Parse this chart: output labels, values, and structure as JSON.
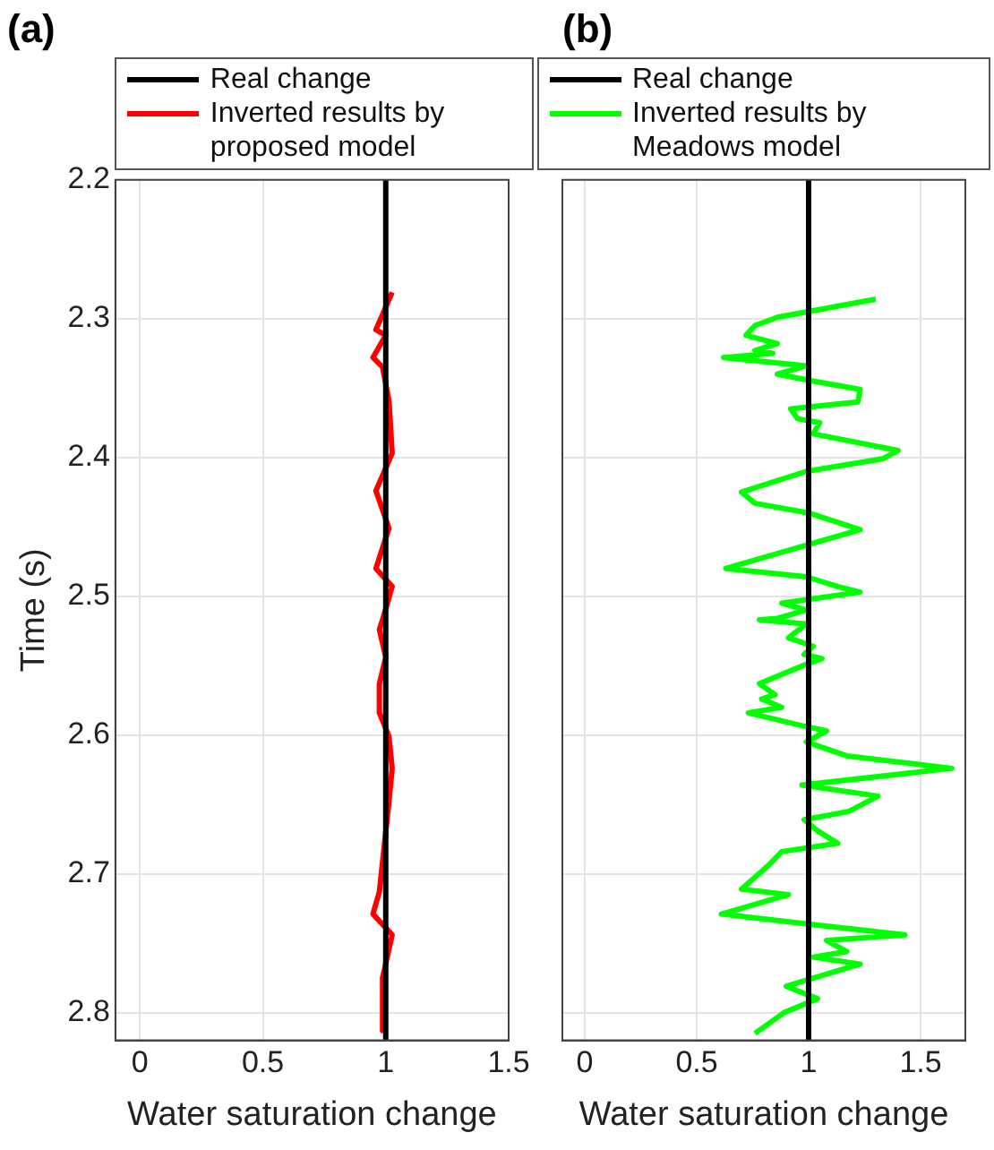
{
  "chart_data": [
    {
      "type": "line",
      "title": "(a)",
      "xlabel": "Water saturation change",
      "ylabel": "Time (s)",
      "xlim": [
        -0.1,
        1.5
      ],
      "xticks": [
        0,
        0.5,
        1,
        1.5
      ],
      "ylim": [
        2.82,
        2.2
      ],
      "yticks": [
        2.2,
        2.3,
        2.4,
        2.5,
        2.6,
        2.7,
        2.8
      ],
      "grid": true,
      "legend": "top",
      "marker": "none",
      "series": [
        {
          "name": "Real change",
          "color": "#000000",
          "x": [
            1,
            1
          ],
          "values": [
            2.2,
            2.82
          ]
        },
        {
          "name": "Inverted results by proposed model",
          "color": "#ff0000",
          "x": [
            1.026,
            0.987,
            0.96,
            1.0,
            0.948,
            0.987,
            1.013,
            1.026,
            0.96,
            1.013,
            0.96,
            1.026,
            0.987,
            0.974,
            1.0,
            0.974,
            0.974,
            1.013,
            1.026,
            1.013,
            0.974,
            0.948,
            1.026,
            0.987,
            0.987
          ],
          "values": [
            2.281,
            2.297,
            2.308,
            2.312,
            2.328,
            2.335,
            2.359,
            2.397,
            2.424,
            2.451,
            2.48,
            2.493,
            2.517,
            2.524,
            2.544,
            2.563,
            2.584,
            2.601,
            2.624,
            2.648,
            2.713,
            2.729,
            2.744,
            2.775,
            2.813
          ]
        }
      ]
    },
    {
      "type": "line",
      "title": "(b)",
      "xlabel": "Water saturation change",
      "xlim": [
        -0.1,
        1.7
      ],
      "xticks": [
        0,
        0.5,
        1,
        1.5
      ],
      "ylim": [
        2.82,
        2.2
      ],
      "yticks": [
        2.2,
        2.3,
        2.4,
        2.5,
        2.6,
        2.7,
        2.8
      ],
      "tick_labels": "x",
      "grid": true,
      "legend": "top",
      "marker": "none",
      "series": [
        {
          "name": "Real change",
          "color": "#000000",
          "x": [
            1,
            1
          ],
          "values": [
            2.2,
            2.82
          ]
        },
        {
          "name": "Inverted results by Meadows model",
          "color": "#00ff00",
          "x": [
            1.3,
            0.86,
            0.76,
            0.72,
            0.86,
            0.76,
            0.84,
            0.62,
            0.8,
            0.99,
            0.86,
            1.02,
            1.23,
            1.22,
            0.92,
            0.95,
            1.05,
            1.02,
            1.4,
            1.33,
            0.99,
            0.7,
            0.76,
            1.0,
            1.23,
            0.63,
            0.99,
            1.13,
            1.23,
            0.88,
            0.99,
            0.86,
            0.78,
            0.99,
            0.91,
            1.02,
            0.98,
            1.06,
            0.99,
            0.78,
            0.85,
            0.79,
            0.88,
            0.73,
            0.99,
            1.08,
            0.99,
            1.17,
            1.64,
            0.97,
            1.31,
            1.18,
            0.98,
            1.04,
            1.13,
            0.88,
            0.82,
            0.7,
            0.91,
            0.61,
            0.99,
            1.43,
            1.08,
            1.17,
            1.02,
            1.23,
            0.9,
            1.04,
            0.89,
            0.76
          ],
          "values": [
            2.286,
            2.299,
            2.305,
            2.312,
            2.318,
            2.323,
            2.325,
            2.328,
            2.331,
            2.334,
            2.34,
            2.345,
            2.351,
            2.36,
            2.365,
            2.372,
            2.375,
            2.383,
            2.395,
            2.401,
            2.41,
            2.425,
            2.433,
            2.44,
            2.452,
            2.48,
            2.486,
            2.493,
            2.497,
            2.505,
            2.51,
            2.516,
            2.517,
            2.52,
            2.53,
            2.536,
            2.542,
            2.545,
            2.549,
            2.563,
            2.571,
            2.574,
            2.58,
            2.584,
            2.594,
            2.597,
            2.605,
            2.615,
            2.624,
            2.636,
            2.644,
            2.655,
            2.661,
            2.669,
            2.678,
            2.684,
            2.694,
            2.711,
            2.715,
            2.729,
            2.736,
            2.744,
            2.748,
            2.756,
            2.76,
            2.765,
            2.781,
            2.79,
            2.8,
            2.815
          ]
        }
      ]
    }
  ]
}
